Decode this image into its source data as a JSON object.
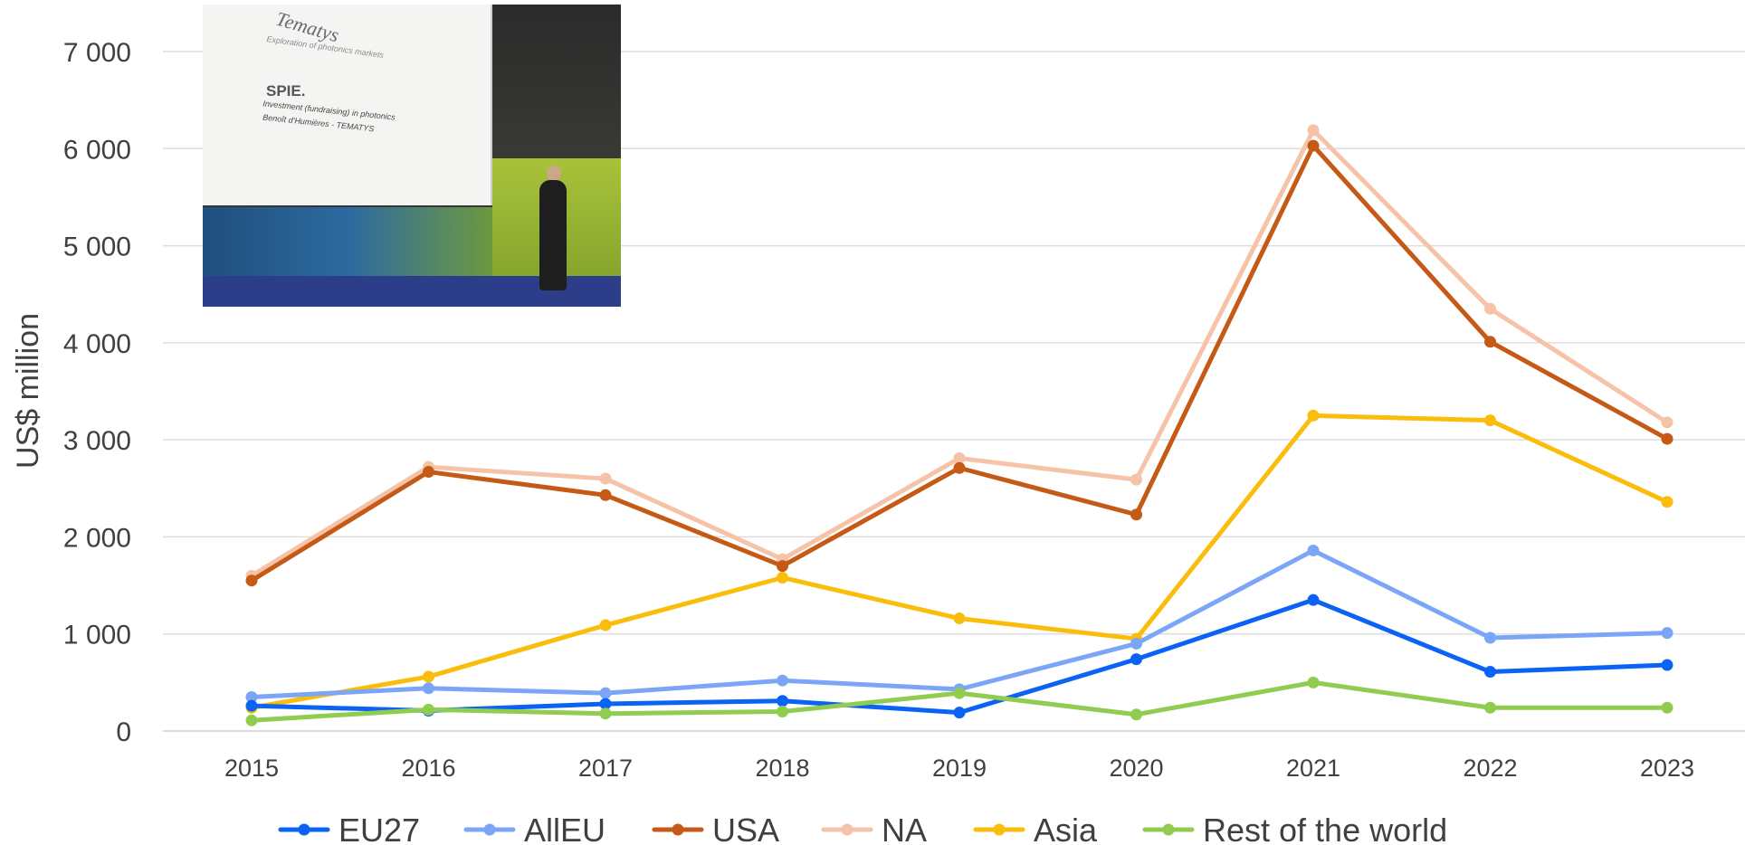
{
  "chart_data": {
    "type": "line",
    "title": "",
    "xlabel": "",
    "ylabel": "US$ million",
    "ylim": [
      0,
      7000
    ],
    "yticks": [
      0,
      1000,
      2000,
      3000,
      4000,
      5000,
      6000,
      7000
    ],
    "ytick_labels": [
      "0",
      "1 000",
      "2 000",
      "3 000",
      "4 000",
      "5 000",
      "6 000",
      "7 000"
    ],
    "categories": [
      "2015",
      "2016",
      "2017",
      "2018",
      "2019",
      "2020",
      "2021",
      "2022",
      "2023"
    ],
    "grid": "horizontal",
    "legend_position": "bottom",
    "series": [
      {
        "name": "EU27",
        "color": "#0a63f5",
        "values": [
          260,
          210,
          280,
          310,
          190,
          740,
          1350,
          610,
          680
        ]
      },
      {
        "name": "AllEU",
        "color": "#7ba6f8",
        "values": [
          350,
          440,
          390,
          520,
          430,
          900,
          1860,
          960,
          1010
        ]
      },
      {
        "name": "USA",
        "color": "#c55a16",
        "values": [
          1550,
          2670,
          2430,
          1700,
          2710,
          2230,
          6030,
          4010,
          3010
        ]
      },
      {
        "name": "NA",
        "color": "#f6c3a8",
        "values": [
          1600,
          2720,
          2600,
          1770,
          2810,
          2590,
          6190,
          4350,
          3180
        ]
      },
      {
        "name": "Asia",
        "color": "#fbbd0b",
        "values": [
          240,
          560,
          1090,
          1580,
          1160,
          950,
          3250,
          3200,
          2360
        ]
      },
      {
        "name": "Rest of the world",
        "color": "#8fcc4f",
        "values": [
          110,
          220,
          180,
          200,
          390,
          170,
          500,
          240,
          240
        ]
      }
    ]
  },
  "photo": {
    "banner_logo": "Tematys",
    "banner_subtitle": "Exploration of photonics markets",
    "banner_event": "SPIE.",
    "banner_line1": "Investment (fundraising) in photonics",
    "banner_line2": "Benoît d'Humières - TEMATYS"
  }
}
